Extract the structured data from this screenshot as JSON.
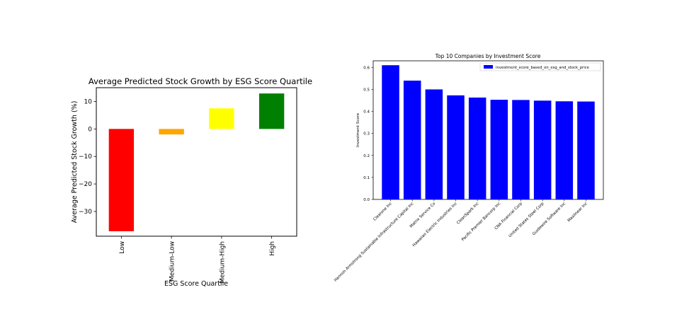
{
  "chart_data": [
    {
      "type": "bar",
      "title": "Average Predicted Stock Growth by ESG Score Quartile",
      "xlabel": "ESG Score Quartile",
      "ylabel": "Average Predicted Stock Growth (%)",
      "categories": [
        "Low",
        "Medium-Low",
        "Medium-High",
        "High"
      ],
      "values": [
        -37.2,
        -2.0,
        7.5,
        12.9
      ],
      "colors": [
        "#ff0000",
        "#ffa500",
        "#ffff00",
        "#008000"
      ],
      "ylim": [
        -39,
        15
      ],
      "yticks": [
        10,
        0,
        -10,
        -20,
        -30
      ],
      "ytick_labels": [
        "10",
        "0",
        "−10",
        "−20",
        "−30"
      ],
      "grid": false,
      "legend": false
    },
    {
      "type": "bar",
      "title": "Top 10 Companies by Investment Score",
      "xlabel": "",
      "ylabel": "Investment Score",
      "categories": [
        "Clearone Inc",
        "Hannon Armstrong Sustainable Infrastructure Capital Inc",
        "Matrix Service Co",
        "Hawaiian Electric Industries Inc",
        "CleanSpark Inc",
        "Pacific Premier Bancorp Inc",
        "CNA Financial Corp",
        "United States Steel Corp",
        "Guidewire Software Inc",
        "Maxlinear Inc"
      ],
      "series": [
        {
          "name": "investment_score_based_on_esg_and_stock_price",
          "values": [
            0.61,
            0.54,
            0.5,
            0.473,
            0.463,
            0.453,
            0.452,
            0.449,
            0.446,
            0.445
          ],
          "color": "#0000ff"
        }
      ],
      "ylim": [
        0,
        0.63
      ],
      "yticks": [
        0.0,
        0.1,
        0.2,
        0.3,
        0.4,
        0.5,
        0.6
      ],
      "ytick_labels": [
        "0.0",
        "0.1",
        "0.2",
        "0.3",
        "0.4",
        "0.5",
        "0.6"
      ],
      "grid": false,
      "legend": "top-right"
    }
  ]
}
